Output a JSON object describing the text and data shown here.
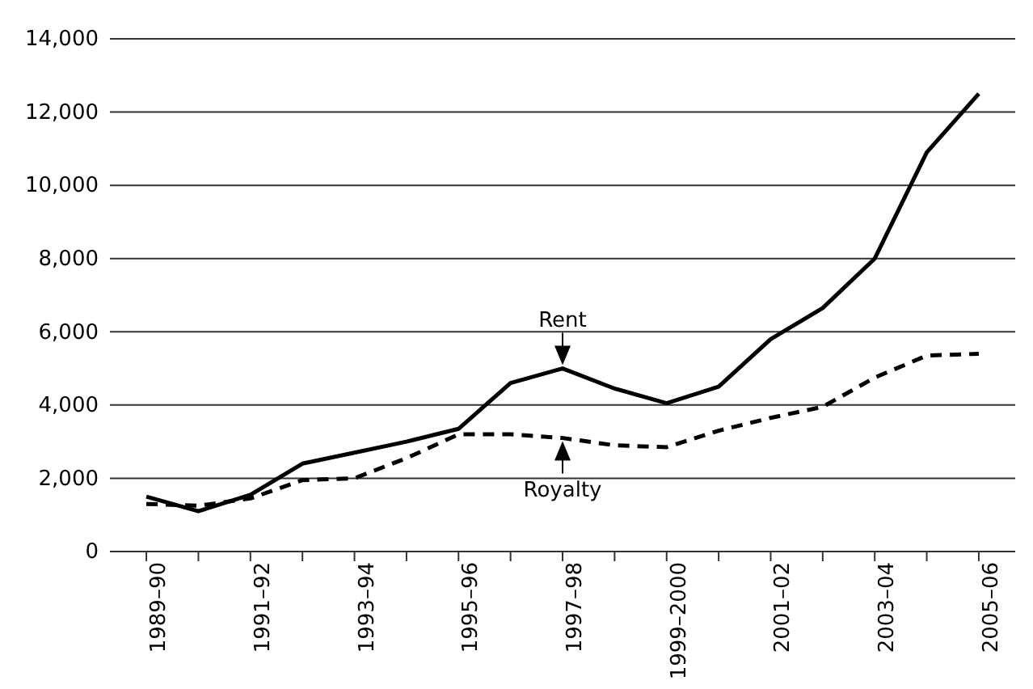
{
  "chart_data": {
    "type": "line",
    "categories": [
      "1989–90",
      null,
      "1991–92",
      null,
      "1993–94",
      null,
      "1995–96",
      null,
      "1997–98",
      null,
      "1999–2000",
      null,
      "2001–02",
      null,
      "2003–04",
      null,
      "2005–06"
    ],
    "series": [
      {
        "color": "#000000",
        "line_style": "solid",
        "values": [
          1500,
          1100,
          1550,
          2400,
          2700,
          3000,
          3350,
          4600,
          5000,
          4450,
          4050,
          4500,
          5800,
          6650,
          8000,
          10900,
          12500
        ]
      },
      {
        "color": "#000000",
        "line_style": "dashed",
        "values": [
          1300,
          1250,
          1450,
          1950,
          2000,
          2550,
          3200,
          3200,
          3100,
          2900,
          2850,
          3300,
          3650,
          3950,
          4750,
          5350,
          5400
        ]
      }
    ],
    "ylim": [
      0,
      14000
    ],
    "yticks": [
      0,
      {
        "value": 2000,
        "label": "2,000"
      },
      {
        "value": 4000,
        "label": "4,000"
      },
      {
        "value": 6000,
        "label": "6,000"
      },
      {
        "value": 8000,
        "label": "8,000"
      },
      {
        "value": 10000,
        "label": "10,000"
      },
      {
        "value": 12000,
        "label": "12,000"
      },
      {
        "value": 14000,
        "label": "14,000"
      }
    ],
    "grid": "y",
    "annotations": [
      {
        "text": "Rent",
        "x": "1997–98",
        "y": 5000
      },
      {
        "text": "Royalty",
        "x": "1997–98",
        "y": 3100
      }
    ]
  }
}
